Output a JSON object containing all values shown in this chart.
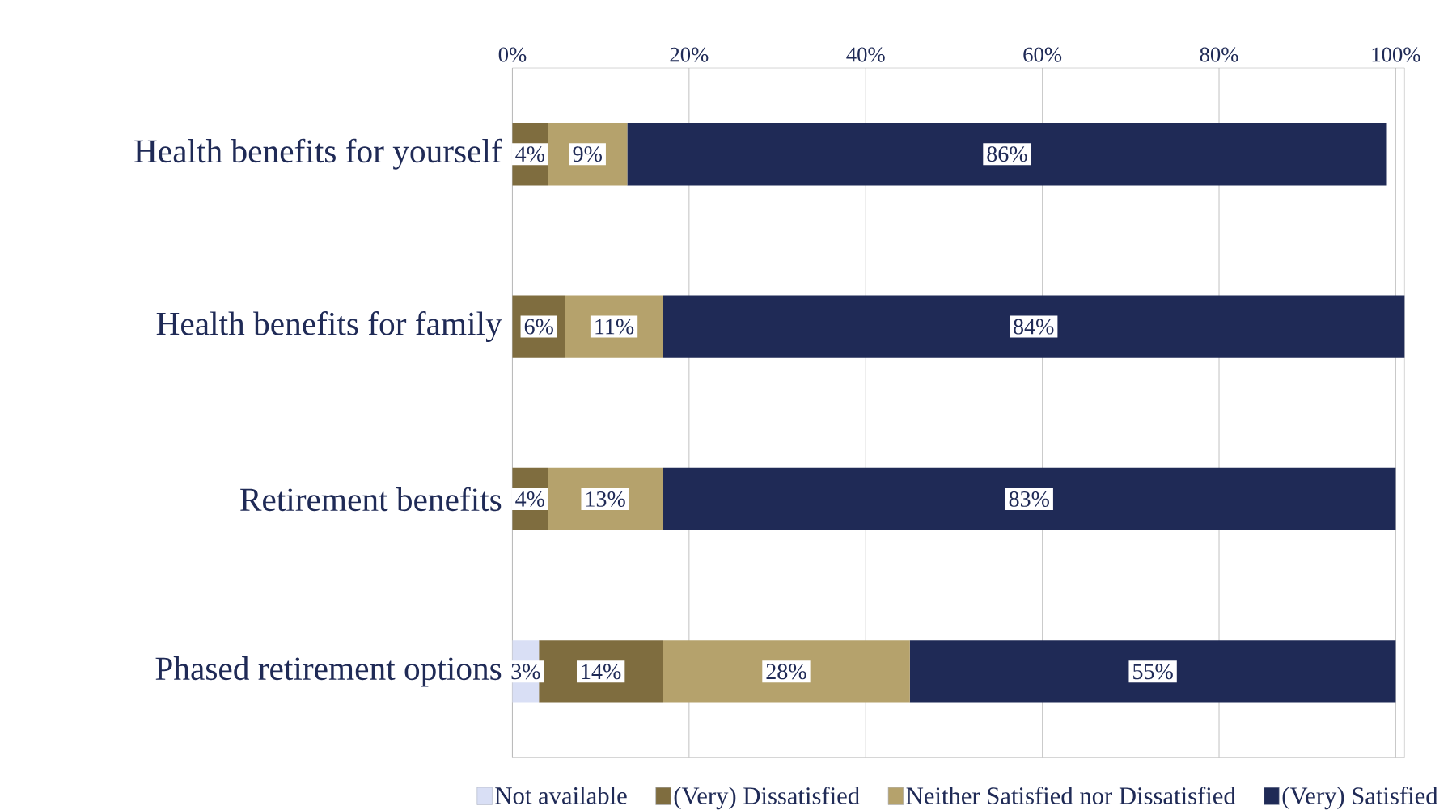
{
  "chart_data": {
    "type": "bar",
    "orientation": "horizontal",
    "stacked": true,
    "categories": [
      "Health benefits for yourself",
      "Health benefits for family",
      "Retirement benefits",
      "Phased retirement options"
    ],
    "series": [
      {
        "name": "Not available",
        "color": "#d9dff5",
        "values": [
          null,
          null,
          null,
          3
        ],
        "value_labels": [
          null,
          null,
          null,
          "3%"
        ]
      },
      {
        "name": "(Very) Dissatisfied",
        "color": "#7f6d3f",
        "values": [
          4,
          6,
          4,
          14
        ],
        "value_labels": [
          "4%",
          "6%",
          "4%",
          "14%"
        ]
      },
      {
        "name": "Neither Satisfied nor Dissatisfied",
        "color": "#b5a26c",
        "values": [
          9,
          11,
          13,
          28
        ],
        "value_labels": [
          "9%",
          "11%",
          "13%",
          "28%"
        ]
      },
      {
        "name": "(Very) Satisfied",
        "color": "#1f2a56",
        "values": [
          86,
          84,
          83,
          55
        ],
        "value_labels": [
          "86%",
          "84%",
          "83%",
          "55%"
        ]
      }
    ],
    "xlim": [
      0,
      101
    ],
    "xticks": [
      {
        "value": 0,
        "label": "0%"
      },
      {
        "value": 20,
        "label": "20%"
      },
      {
        "value": 40,
        "label": "40%"
      },
      {
        "value": 60,
        "label": "60%"
      },
      {
        "value": 80,
        "label": "80%"
      },
      {
        "value": 100,
        "label": "100%"
      }
    ],
    "grid": "x",
    "legend": "bottom"
  }
}
